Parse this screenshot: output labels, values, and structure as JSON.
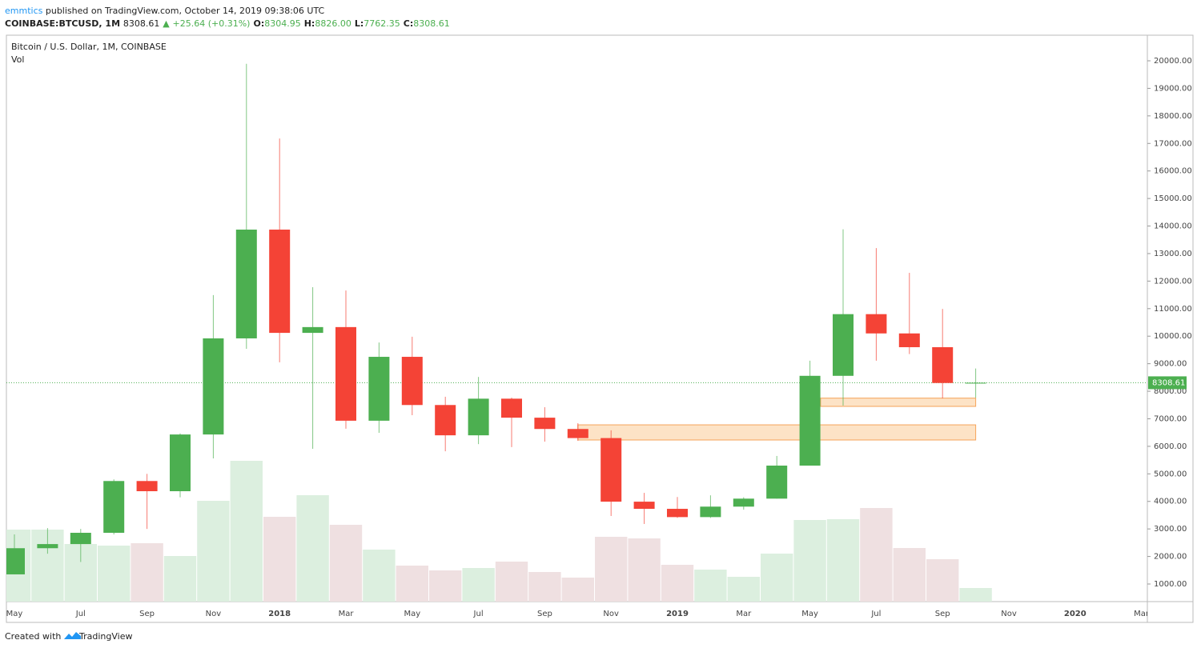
{
  "header": {
    "author": "emmtics",
    "published": "published on TradingView.com, October 14, 2019 09:38:06 UTC",
    "symbol": "COINBASE:BTCUSD, 1M",
    "last": "8308.61",
    "change": "+25.64 (+0.31%)",
    "ohlc": [
      {
        "label": "O:",
        "value": "8304.95"
      },
      {
        "label": "H:",
        "value": "8826.00"
      },
      {
        "label": "L:",
        "value": "7762.35"
      },
      {
        "label": "C:",
        "value": "8308.61"
      }
    ]
  },
  "chart_data": {
    "type": "candlestick",
    "title": "Bitcoin / U.S. Dollar, 1M, COINBASE",
    "volume_label": "Vol",
    "categories": [
      "May",
      null,
      "Jul",
      null,
      "Sep",
      null,
      "Nov",
      null,
      "2018",
      null,
      "Mar",
      null,
      "May",
      null,
      "Jul",
      null,
      "Sep",
      null,
      "Nov",
      null,
      "2019",
      null,
      "Mar",
      null,
      "May",
      null,
      "Jul",
      null,
      "Sep",
      null,
      "Nov",
      null,
      "2020",
      null,
      "Mar"
    ],
    "open": [
      1350,
      2300,
      2450,
      2860,
      4740,
      4370,
      6430,
      9920,
      13870,
      10120,
      10330,
      6930,
      9250,
      7500,
      6400,
      7730,
      7040,
      6630,
      6300,
      3990,
      3730,
      3430,
      3810,
      4100,
      5300,
      8560,
      10800,
      10100,
      9600,
      8304.95,
      null,
      null,
      null,
      null,
      null
    ],
    "high": [
      2800,
      3030,
      3000,
      4800,
      5000,
      6470,
      11490,
      19890,
      17180,
      11780,
      11660,
      9770,
      9980,
      7800,
      8520,
      7770,
      7420,
      6840,
      6580,
      4310,
      4160,
      4220,
      4150,
      5650,
      9110,
      13880,
      13200,
      12300,
      10990,
      8826,
      null,
      null,
      null,
      null,
      null
    ],
    "low": [
      1350,
      2100,
      1800,
      2800,
      3000,
      4150,
      5560,
      9540,
      9050,
      5910,
      6640,
      6490,
      7130,
      5820,
      6080,
      5970,
      6170,
      6200,
      3470,
      3180,
      3400,
      3400,
      3700,
      4100,
      5300,
      7480,
      9110,
      9350,
      7740,
      7762.35,
      null,
      null,
      null,
      null,
      null
    ],
    "close": [
      2300,
      2450,
      2860,
      4740,
      4370,
      6430,
      9920,
      13870,
      10120,
      10330,
      6930,
      9250,
      7500,
      6400,
      7730,
      7040,
      6630,
      6300,
      3990,
      3730,
      3430,
      3810,
      4100,
      5300,
      8560,
      10800,
      10100,
      9600,
      8300,
      8308.61,
      null,
      null,
      null,
      null,
      null
    ],
    "volume": [
      90,
      90,
      72,
      70,
      73,
      57,
      126,
      176,
      106,
      133,
      96,
      65,
      45,
      39,
      42,
      50,
      37,
      30,
      81,
      79,
      46,
      40,
      31,
      60,
      102,
      103,
      117,
      67,
      53,
      17,
      null,
      null,
      null,
      null,
      null
    ],
    "up_color": "#4caf50",
    "down_color": "#f44336",
    "volume_up_color": "#dcefdf",
    "volume_down_color": "#efe0e1",
    "zones": [
      {
        "low": 7450,
        "high": 7750
      },
      {
        "low": 6230,
        "high": 6780
      }
    ],
    "zone_color": "#fde3c6",
    "zone_border": "#f5a35a",
    "last_price": 8308.61,
    "ylim": [
      361,
      20930
    ],
    "yticks": [
      {
        "value": 1000,
        "label": "1000.00"
      },
      {
        "value": 2000,
        "label": "2000.00"
      },
      {
        "value": 3000,
        "label": "3000.00"
      },
      {
        "value": 4000,
        "label": "4000.00"
      },
      {
        "value": 5000,
        "label": "5000.00"
      },
      {
        "value": 6000,
        "label": "6000.00"
      },
      {
        "value": 7000,
        "label": "7000.00"
      },
      {
        "value": 8000,
        "label": "8000.00"
      },
      {
        "value": 9000,
        "label": "9000.00"
      },
      {
        "value": 10000,
        "label": "10000.00"
      },
      {
        "value": 11000,
        "label": "11000.00"
      },
      {
        "value": 12000,
        "label": "12000.00"
      },
      {
        "value": 13000,
        "label": "13000.00"
      },
      {
        "value": 14000,
        "label": "14000.00"
      },
      {
        "value": 15000,
        "label": "15000.00"
      },
      {
        "value": 16000,
        "label": "16000.00"
      },
      {
        "value": 17000,
        "label": "17000.00"
      },
      {
        "value": 18000,
        "label": "18000.00"
      },
      {
        "value": 19000,
        "label": "19000.00"
      },
      {
        "value": 20000,
        "label": "20000.00"
      }
    ],
    "grid": false
  },
  "footer": {
    "text": "Created with",
    "brand": "TradingView"
  }
}
